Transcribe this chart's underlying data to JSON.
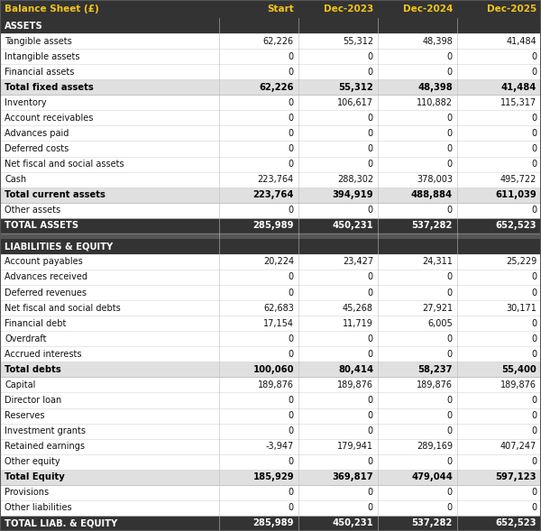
{
  "columns": [
    "Balance Sheet (£)",
    "Start",
    "Dec-2023",
    "Dec-2024",
    "Dec-2025"
  ],
  "header_bg": "#333333",
  "header_fg": "#f5c518",
  "section_bg": "#333333",
  "section_fg": "#ffffff",
  "subtotal_bg": "#e0e0e0",
  "subtotal_fg": "#000000",
  "total_bg": "#333333",
  "total_fg": "#ffffff",
  "normal_bg": "#ffffff",
  "normal_fg": "#111111",
  "separator_bg": "#555555",
  "rows": [
    {
      "label": "ASSETS",
      "values": [
        "",
        "",
        "",
        ""
      ],
      "type": "section"
    },
    {
      "label": "Tangible assets",
      "values": [
        "62,226",
        "55,312",
        "48,398",
        "41,484"
      ],
      "type": "normal"
    },
    {
      "label": "Intangible assets",
      "values": [
        "0",
        "0",
        "0",
        "0"
      ],
      "type": "normal"
    },
    {
      "label": "Financial assets",
      "values": [
        "0",
        "0",
        "0",
        "0"
      ],
      "type": "normal"
    },
    {
      "label": "Total fixed assets",
      "values": [
        "62,226",
        "55,312",
        "48,398",
        "41,484"
      ],
      "type": "subtotal"
    },
    {
      "label": "Inventory",
      "values": [
        "0",
        "106,617",
        "110,882",
        "115,317"
      ],
      "type": "normal"
    },
    {
      "label": "Account receivables",
      "values": [
        "0",
        "0",
        "0",
        "0"
      ],
      "type": "normal"
    },
    {
      "label": "Advances paid",
      "values": [
        "0",
        "0",
        "0",
        "0"
      ],
      "type": "normal"
    },
    {
      "label": "Deferred costs",
      "values": [
        "0",
        "0",
        "0",
        "0"
      ],
      "type": "normal"
    },
    {
      "label": "Net fiscal and social assets",
      "values": [
        "0",
        "0",
        "0",
        "0"
      ],
      "type": "normal"
    },
    {
      "label": "Cash",
      "values": [
        "223,764",
        "288,302",
        "378,003",
        "495,722"
      ],
      "type": "normal"
    },
    {
      "label": "Total current assets",
      "values": [
        "223,764",
        "394,919",
        "488,884",
        "611,039"
      ],
      "type": "subtotal"
    },
    {
      "label": "Other assets",
      "values": [
        "0",
        "0",
        "0",
        "0"
      ],
      "type": "normal"
    },
    {
      "label": "TOTAL ASSETS",
      "values": [
        "285,989",
        "450,231",
        "537,282",
        "652,523"
      ],
      "type": "total"
    },
    {
      "label": "LIABILITIES & EQUITY",
      "values": [
        "",
        "",
        "",
        ""
      ],
      "type": "section"
    },
    {
      "label": "Account payables",
      "values": [
        "20,224",
        "23,427",
        "24,311",
        "25,229"
      ],
      "type": "normal"
    },
    {
      "label": "Advances received",
      "values": [
        "0",
        "0",
        "0",
        "0"
      ],
      "type": "normal"
    },
    {
      "label": "Deferred revenues",
      "values": [
        "0",
        "0",
        "0",
        "0"
      ],
      "type": "normal"
    },
    {
      "label": "Net fiscal and social debts",
      "values": [
        "62,683",
        "45,268",
        "27,921",
        "30,171"
      ],
      "type": "normal"
    },
    {
      "label": "Financial debt",
      "values": [
        "17,154",
        "11,719",
        "6,005",
        "0"
      ],
      "type": "normal"
    },
    {
      "label": "Overdraft",
      "values": [
        "0",
        "0",
        "0",
        "0"
      ],
      "type": "normal"
    },
    {
      "label": "Accrued interests",
      "values": [
        "0",
        "0",
        "0",
        "0"
      ],
      "type": "normal"
    },
    {
      "label": "Total debts",
      "values": [
        "100,060",
        "80,414",
        "58,237",
        "55,400"
      ],
      "type": "subtotal"
    },
    {
      "label": "Capital",
      "values": [
        "189,876",
        "189,876",
        "189,876",
        "189,876"
      ],
      "type": "normal"
    },
    {
      "label": "Director loan",
      "values": [
        "0",
        "0",
        "0",
        "0"
      ],
      "type": "normal"
    },
    {
      "label": "Reserves",
      "values": [
        "0",
        "0",
        "0",
        "0"
      ],
      "type": "normal"
    },
    {
      "label": "Investment grants",
      "values": [
        "0",
        "0",
        "0",
        "0"
      ],
      "type": "normal"
    },
    {
      "label": "Retained earnings",
      "values": [
        "-3,947",
        "179,941",
        "289,169",
        "407,247"
      ],
      "type": "normal"
    },
    {
      "label": "Other equity",
      "values": [
        "0",
        "0",
        "0",
        "0"
      ],
      "type": "normal"
    },
    {
      "label": "Total Equity",
      "values": [
        "185,929",
        "369,817",
        "479,044",
        "597,123"
      ],
      "type": "subtotal"
    },
    {
      "label": "Provisions",
      "values": [
        "0",
        "0",
        "0",
        "0"
      ],
      "type": "normal"
    },
    {
      "label": "Other liabilities",
      "values": [
        "0",
        "0",
        "0",
        "0"
      ],
      "type": "normal"
    },
    {
      "label": "TOTAL LIAB. & EQUITY",
      "values": [
        "285,989",
        "450,231",
        "537,282",
        "652,523"
      ],
      "type": "total"
    }
  ]
}
